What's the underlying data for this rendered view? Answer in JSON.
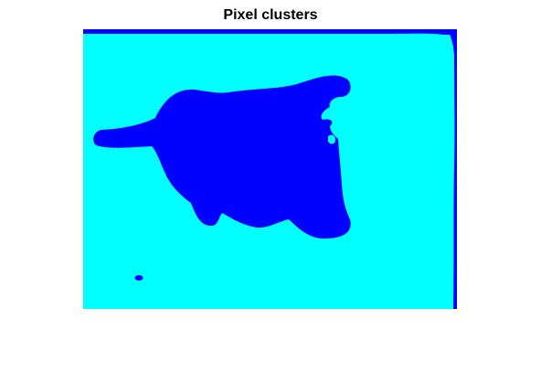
{
  "figure": {
    "title": "Pixel clusters"
  },
  "clusters": {
    "count": 2,
    "colors": {
      "cluster_1": "#0000FF",
      "cluster_2": "#00FFFF"
    }
  }
}
